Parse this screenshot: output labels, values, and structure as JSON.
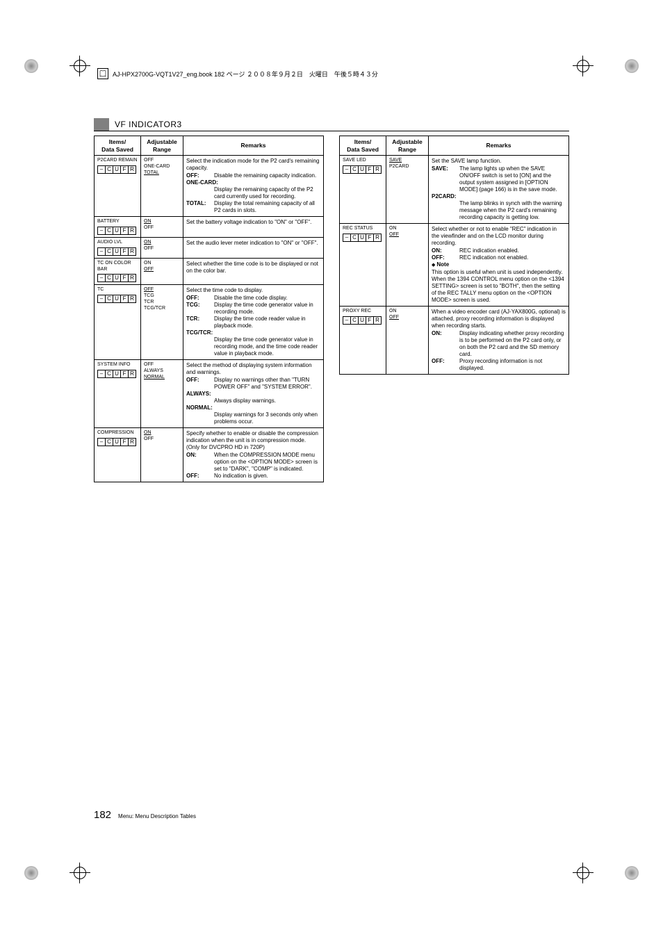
{
  "header_line": "AJ-HPX2700G-VQT1V27_eng.book  182 ページ  ２００８年９月２日　火曜日　午後５時４３分",
  "section_title": "VF INDICATOR3",
  "table_headers": {
    "items": "Items/\nData Saved",
    "range": "Adjustable\nRange",
    "remarks": "Remarks"
  },
  "cufr_letters": [
    "–",
    "C",
    "U",
    "F",
    "R"
  ],
  "left_rows": [
    {
      "item": "P2CARD REMAIN",
      "range": [
        {
          "v": "OFF"
        },
        {
          "v": "ONE-CARD"
        },
        {
          "v": "TOTAL",
          "u": true
        }
      ],
      "remarks": {
        "lead": "Select the indication mode for the P2 card's remaining capacity.",
        "opts": [
          {
            "l": "OFF:",
            "t": "Disable the remaining capacity indication."
          },
          {
            "l": "ONE-CARD:",
            "full": true,
            "t": "Display the remaining capacity of the P2 card currently used for recording."
          },
          {
            "l": "TOTAL:",
            "t": "Display the total remaining capacity of all P2 cards in slots."
          }
        ]
      }
    },
    {
      "item": "BATTERY",
      "range": [
        {
          "v": "ON",
          "u": true
        },
        {
          "v": "OFF"
        }
      ],
      "remarks": {
        "lead": "Set the battery voltage indication to \"ON\" or \"OFF\"."
      }
    },
    {
      "item": "AUDIO LVL",
      "range": [
        {
          "v": "ON",
          "u": true
        },
        {
          "v": "OFF"
        }
      ],
      "remarks": {
        "lead": "Set the audio lever meter indication to \"ON\" or \"OFF\"."
      }
    },
    {
      "item": "TC ON COLOR BAR",
      "range": [
        {
          "v": "ON"
        },
        {
          "v": "OFF",
          "u": true
        }
      ],
      "remarks": {
        "lead": "Select whether the time code is to be displayed or not on the color bar."
      }
    },
    {
      "item": "TC",
      "range": [
        {
          "v": "OFF",
          "u": true
        },
        {
          "v": "TCG"
        },
        {
          "v": "TCR"
        },
        {
          "v": "TCG/TCR"
        }
      ],
      "remarks": {
        "lead": "Select the time code to display.",
        "opts": [
          {
            "l": "OFF:",
            "t": "Disable the time code display."
          },
          {
            "l": "TCG:",
            "t": "Display the time code generator value in recording mode."
          },
          {
            "l": "TCR:",
            "t": "Display the time code reader value in playback mode."
          },
          {
            "l": "TCG/TCR:",
            "full": true,
            "t": "Display the time code generator value in recording mode, and the time code reader value in playback mode."
          }
        ]
      }
    },
    {
      "item": "SYSTEM INFO",
      "range": [
        {
          "v": "OFF"
        },
        {
          "v": "ALWAYS"
        },
        {
          "v": "NORMAL",
          "u": true
        }
      ],
      "remarks": {
        "lead": "Select the method of displaying system information and warnings.",
        "opts": [
          {
            "l": "OFF:",
            "t": "Display no warnings other than \"TURN POWER OFF\" and \"SYSTEM ERROR\"."
          },
          {
            "l": "ALWAYS:",
            "full": true,
            "t": "Always display warnings."
          },
          {
            "l": "NORMAL:",
            "full": true,
            "t": "Display warnings for 3 seconds only when problems occur."
          }
        ]
      }
    },
    {
      "item": "COMPRESSION",
      "range": [
        {
          "v": "ON",
          "u": true
        },
        {
          "v": "OFF"
        }
      ],
      "remarks": {
        "lead": "Specify whether to enable or disable the compression indication when the unit is in compression mode. (Only for DVCPRO HD in 720P)",
        "opts": [
          {
            "l": "ON:",
            "t": "When the COMPRESSION MODE menu option on the <OPTION MODE> screen is set to \"DARK\", \"COMP\" is indicated."
          },
          {
            "l": "OFF:",
            "t": "No indication is given."
          }
        ]
      }
    }
  ],
  "right_rows": [
    {
      "item": "SAVE LED",
      "range": [
        {
          "v": "SAVE",
          "u": true
        },
        {
          "v": "P2CARD"
        }
      ],
      "remarks": {
        "lead": "Set the SAVE lamp function.",
        "opts": [
          {
            "l": "SAVE:",
            "t": "The lamp lights up when the SAVE ON/OFF switch is set to [ON] and the output system assigned in [OPTION MODE] (page 166) is in the save mode."
          },
          {
            "l": "P2CARD:",
            "full": true,
            "t": "The lamp blinks in synch with the warning message when the P2 card's remaining recording capacity is getting low."
          }
        ]
      }
    },
    {
      "item": "REC STATUS",
      "range": [
        {
          "v": "ON"
        },
        {
          "v": "OFF",
          "u": true
        }
      ],
      "remarks": {
        "lead": "Select whether or not to enable \"REC\" indication in the viewfinder and on the LCD monitor during recording.",
        "opts": [
          {
            "l": "ON:",
            "t": "REC indication enabled."
          },
          {
            "l": "OFF:",
            "t": "REC indication not enabled."
          }
        ],
        "note_label": "Note",
        "note": "This option is useful when unit is used independently. When the 1394 CONTROL menu option on the <1394 SETTING> screen is set to \"BOTH\", then the setting of the REC TALLY menu option on the <OPTION MODE> screen is used."
      }
    },
    {
      "item": "PROXY REC",
      "range": [
        {
          "v": "ON"
        },
        {
          "v": "OFF",
          "u": true
        }
      ],
      "remarks": {
        "lead": "When a video encoder card (AJ-YAX800G, optional) is attached, proxy recording information is displayed when recording starts.",
        "opts": [
          {
            "l": "ON:",
            "t": "Display indicating whether proxy recording is to be performed on the P2 card only, or on both the P2 card and the SD memory card."
          },
          {
            "l": "OFF:",
            "t": "Proxy recording information is not displayed."
          }
        ]
      }
    }
  ],
  "footer": {
    "page": "182",
    "text": "Menu: Menu Description Tables"
  }
}
